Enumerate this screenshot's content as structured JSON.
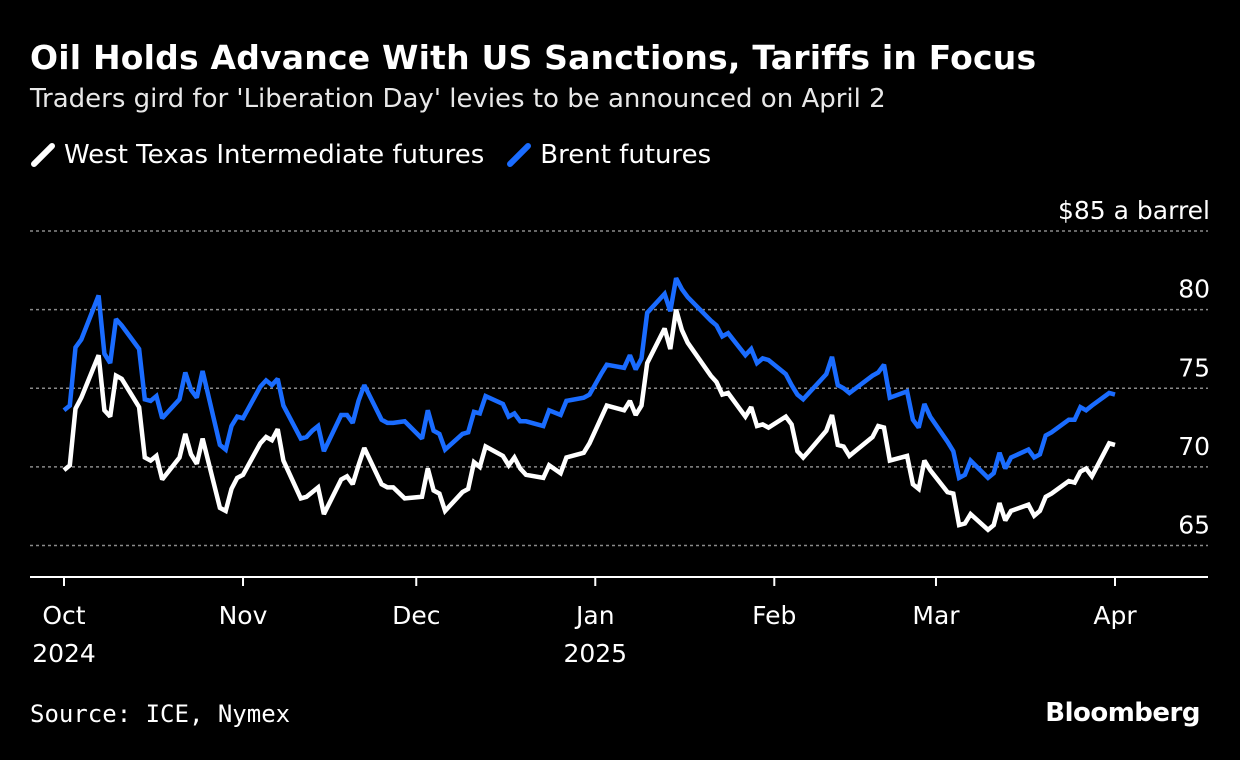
{
  "header": {
    "title": "Oil Holds Advance With US Sanctions, Tariffs in Focus",
    "subtitle": "Traders gird for 'Liberation Day' levies to be announced on April 2"
  },
  "footer": {
    "source": "Source: ICE, Nymex",
    "brand": "Bloomberg"
  },
  "colors": {
    "background": "#000000",
    "wti": "#ffffff",
    "brent": "#1a6cff",
    "grid": "#8a8a8a"
  },
  "chart_data": {
    "type": "line",
    "title": "Oil Holds Advance With US Sanctions, Tariffs in Focus",
    "subtitle": "Traders gird for 'Liberation Day' levies to be announced on April 2",
    "ylabel": "",
    "y_unit_label": "$85 a barrel",
    "ylim": [
      63,
      85
    ],
    "yticks": [
      65,
      70,
      75,
      80,
      85
    ],
    "ytick_labels": [
      "65",
      "70",
      "75",
      "80",
      "$85 a barrel"
    ],
    "grid": "horizontal dotted",
    "legend": "top-left",
    "xlim": [
      "2024-10-01",
      "2025-04-01"
    ],
    "xticks": [
      {
        "date": "2024-10-01",
        "label": "Oct",
        "sublabel": "2024"
      },
      {
        "date": "2024-11-01",
        "label": "Nov",
        "sublabel": ""
      },
      {
        "date": "2024-12-01",
        "label": "Dec",
        "sublabel": ""
      },
      {
        "date": "2025-01-01",
        "label": "Jan",
        "sublabel": "2025"
      },
      {
        "date": "2025-02-01",
        "label": "Feb",
        "sublabel": ""
      },
      {
        "date": "2025-03-01",
        "label": "Mar",
        "sublabel": ""
      },
      {
        "date": "2025-04-01",
        "label": "Apr",
        "sublabel": ""
      }
    ],
    "series": [
      {
        "name": "West Texas Intermediate futures",
        "color": "#ffffff",
        "points": [
          [
            "2024-10-01",
            69.8
          ],
          [
            "2024-10-02",
            70.1
          ],
          [
            "2024-10-03",
            73.7
          ],
          [
            "2024-10-04",
            74.4
          ],
          [
            "2024-10-07",
            77.1
          ],
          [
            "2024-10-08",
            73.6
          ],
          [
            "2024-10-09",
            73.2
          ],
          [
            "2024-10-10",
            75.8
          ],
          [
            "2024-10-11",
            75.6
          ],
          [
            "2024-10-14",
            73.8
          ],
          [
            "2024-10-15",
            70.6
          ],
          [
            "2024-10-16",
            70.4
          ],
          [
            "2024-10-17",
            70.7
          ],
          [
            "2024-10-18",
            69.2
          ],
          [
            "2024-10-21",
            70.6
          ],
          [
            "2024-10-22",
            72.1
          ],
          [
            "2024-10-23",
            70.8
          ],
          [
            "2024-10-24",
            70.2
          ],
          [
            "2024-10-25",
            71.8
          ],
          [
            "2024-10-28",
            67.4
          ],
          [
            "2024-10-29",
            67.2
          ],
          [
            "2024-10-30",
            68.6
          ],
          [
            "2024-10-31",
            69.3
          ],
          [
            "2024-11-01",
            69.5
          ],
          [
            "2024-11-04",
            71.5
          ],
          [
            "2024-11-05",
            71.9
          ],
          [
            "2024-11-06",
            71.7
          ],
          [
            "2024-11-07",
            72.4
          ],
          [
            "2024-11-08",
            70.4
          ],
          [
            "2024-11-11",
            68.0
          ],
          [
            "2024-11-12",
            68.1
          ],
          [
            "2024-11-13",
            68.4
          ],
          [
            "2024-11-14",
            68.7
          ],
          [
            "2024-11-15",
            67.0
          ],
          [
            "2024-11-18",
            69.2
          ],
          [
            "2024-11-19",
            69.4
          ],
          [
            "2024-11-20",
            68.9
          ],
          [
            "2024-11-21",
            70.1
          ],
          [
            "2024-11-22",
            71.2
          ],
          [
            "2024-11-25",
            68.9
          ],
          [
            "2024-11-26",
            68.7
          ],
          [
            "2024-11-27",
            68.7
          ],
          [
            "2024-11-29",
            68.0
          ],
          [
            "2024-12-02",
            68.1
          ],
          [
            "2024-12-03",
            69.9
          ],
          [
            "2024-12-04",
            68.5
          ],
          [
            "2024-12-05",
            68.3
          ],
          [
            "2024-12-06",
            67.2
          ],
          [
            "2024-12-09",
            68.4
          ],
          [
            "2024-12-10",
            68.6
          ],
          [
            "2024-12-11",
            70.3
          ],
          [
            "2024-12-12",
            70.0
          ],
          [
            "2024-12-13",
            71.3
          ],
          [
            "2024-12-16",
            70.7
          ],
          [
            "2024-12-17",
            70.1
          ],
          [
            "2024-12-18",
            70.6
          ],
          [
            "2024-12-19",
            69.9
          ],
          [
            "2024-12-20",
            69.5
          ],
          [
            "2024-12-23",
            69.3
          ],
          [
            "2024-12-24",
            70.1
          ],
          [
            "2024-12-26",
            69.6
          ],
          [
            "2024-12-27",
            70.6
          ],
          [
            "2024-12-30",
            70.9
          ],
          [
            "2024-12-31",
            71.5
          ],
          [
            "2025-01-02",
            73.1
          ],
          [
            "2025-01-03",
            73.9
          ],
          [
            "2025-01-06",
            73.6
          ],
          [
            "2025-01-07",
            74.2
          ],
          [
            "2025-01-08",
            73.3
          ],
          [
            "2025-01-09",
            73.9
          ],
          [
            "2025-01-10",
            76.6
          ],
          [
            "2025-01-13",
            78.8
          ],
          [
            "2025-01-14",
            77.5
          ],
          [
            "2025-01-15",
            80.0
          ],
          [
            "2025-01-16",
            78.7
          ],
          [
            "2025-01-17",
            77.9
          ],
          [
            "2025-01-21",
            75.8
          ],
          [
            "2025-01-22",
            75.4
          ],
          [
            "2025-01-23",
            74.6
          ],
          [
            "2025-01-24",
            74.7
          ],
          [
            "2025-01-27",
            73.2
          ],
          [
            "2025-01-28",
            73.8
          ],
          [
            "2025-01-29",
            72.6
          ],
          [
            "2025-01-30",
            72.7
          ],
          [
            "2025-01-31",
            72.5
          ],
          [
            "2025-02-03",
            73.2
          ],
          [
            "2025-02-04",
            72.7
          ],
          [
            "2025-02-05",
            71.0
          ],
          [
            "2025-02-06",
            70.6
          ],
          [
            "2025-02-07",
            71.0
          ],
          [
            "2025-02-10",
            72.3
          ],
          [
            "2025-02-11",
            73.3
          ],
          [
            "2025-02-12",
            71.4
          ],
          [
            "2025-02-13",
            71.3
          ],
          [
            "2025-02-14",
            70.7
          ],
          [
            "2025-02-18",
            71.9
          ],
          [
            "2025-02-19",
            72.6
          ],
          [
            "2025-02-20",
            72.5
          ],
          [
            "2025-02-21",
            70.4
          ],
          [
            "2025-02-24",
            70.7
          ],
          [
            "2025-02-25",
            68.9
          ],
          [
            "2025-02-26",
            68.6
          ],
          [
            "2025-02-27",
            70.4
          ],
          [
            "2025-02-28",
            69.8
          ],
          [
            "2025-03-03",
            68.4
          ],
          [
            "2025-03-04",
            68.3
          ],
          [
            "2025-03-05",
            66.3
          ],
          [
            "2025-03-06",
            66.4
          ],
          [
            "2025-03-07",
            67.0
          ],
          [
            "2025-03-10",
            66.0
          ],
          [
            "2025-03-11",
            66.3
          ],
          [
            "2025-03-12",
            67.7
          ],
          [
            "2025-03-13",
            66.6
          ],
          [
            "2025-03-14",
            67.2
          ],
          [
            "2025-03-17",
            67.6
          ],
          [
            "2025-03-18",
            66.9
          ],
          [
            "2025-03-19",
            67.2
          ],
          [
            "2025-03-20",
            68.1
          ],
          [
            "2025-03-21",
            68.3
          ],
          [
            "2025-03-24",
            69.1
          ],
          [
            "2025-03-25",
            69.0
          ],
          [
            "2025-03-26",
            69.7
          ],
          [
            "2025-03-27",
            69.9
          ],
          [
            "2025-03-28",
            69.4
          ],
          [
            "2025-03-31",
            71.5
          ],
          [
            "2025-04-01",
            71.4
          ]
        ]
      },
      {
        "name": "Brent futures",
        "color": "#1a6cff",
        "points": [
          [
            "2024-10-01",
            73.6
          ],
          [
            "2024-10-02",
            73.9
          ],
          [
            "2024-10-03",
            77.6
          ],
          [
            "2024-10-04",
            78.1
          ],
          [
            "2024-10-07",
            80.9
          ],
          [
            "2024-10-08",
            77.2
          ],
          [
            "2024-10-09",
            76.6
          ],
          [
            "2024-10-10",
            79.4
          ],
          [
            "2024-10-11",
            79.0
          ],
          [
            "2024-10-14",
            77.5
          ],
          [
            "2024-10-15",
            74.3
          ],
          [
            "2024-10-16",
            74.2
          ],
          [
            "2024-10-17",
            74.5
          ],
          [
            "2024-10-18",
            73.1
          ],
          [
            "2024-10-21",
            74.3
          ],
          [
            "2024-10-22",
            76.0
          ],
          [
            "2024-10-23",
            74.9
          ],
          [
            "2024-10-24",
            74.4
          ],
          [
            "2024-10-25",
            76.1
          ],
          [
            "2024-10-28",
            71.4
          ],
          [
            "2024-10-29",
            71.1
          ],
          [
            "2024-10-30",
            72.6
          ],
          [
            "2024-10-31",
            73.2
          ],
          [
            "2024-11-01",
            73.1
          ],
          [
            "2024-11-04",
            75.1
          ],
          [
            "2024-11-05",
            75.5
          ],
          [
            "2024-11-06",
            75.2
          ],
          [
            "2024-11-07",
            75.6
          ],
          [
            "2024-11-08",
            73.9
          ],
          [
            "2024-11-11",
            71.8
          ],
          [
            "2024-11-12",
            71.9
          ],
          [
            "2024-11-13",
            72.3
          ],
          [
            "2024-11-14",
            72.6
          ],
          [
            "2024-11-15",
            71.0
          ],
          [
            "2024-11-18",
            73.3
          ],
          [
            "2024-11-19",
            73.3
          ],
          [
            "2024-11-20",
            72.8
          ],
          [
            "2024-11-21",
            74.2
          ],
          [
            "2024-11-22",
            75.2
          ],
          [
            "2024-11-25",
            73.0
          ],
          [
            "2024-11-26",
            72.8
          ],
          [
            "2024-11-27",
            72.8
          ],
          [
            "2024-11-29",
            72.9
          ],
          [
            "2024-12-02",
            71.8
          ],
          [
            "2024-12-03",
            73.6
          ],
          [
            "2024-12-04",
            72.3
          ],
          [
            "2024-12-05",
            72.1
          ],
          [
            "2024-12-06",
            71.1
          ],
          [
            "2024-12-09",
            72.1
          ],
          [
            "2024-12-10",
            72.2
          ],
          [
            "2024-12-11",
            73.5
          ],
          [
            "2024-12-12",
            73.4
          ],
          [
            "2024-12-13",
            74.5
          ],
          [
            "2024-12-16",
            74.0
          ],
          [
            "2024-12-17",
            73.2
          ],
          [
            "2024-12-18",
            73.4
          ],
          [
            "2024-12-19",
            72.9
          ],
          [
            "2024-12-20",
            72.9
          ],
          [
            "2024-12-23",
            72.6
          ],
          [
            "2024-12-24",
            73.6
          ],
          [
            "2024-12-26",
            73.3
          ],
          [
            "2024-12-27",
            74.2
          ],
          [
            "2024-12-30",
            74.4
          ],
          [
            "2024-12-31",
            74.6
          ],
          [
            "2025-01-02",
            75.9
          ],
          [
            "2025-01-03",
            76.5
          ],
          [
            "2025-01-06",
            76.3
          ],
          [
            "2025-01-07",
            77.1
          ],
          [
            "2025-01-08",
            76.2
          ],
          [
            "2025-01-09",
            76.9
          ],
          [
            "2025-01-10",
            79.8
          ],
          [
            "2025-01-13",
            81.0
          ],
          [
            "2025-01-14",
            79.9
          ],
          [
            "2025-01-15",
            82.0
          ],
          [
            "2025-01-16",
            81.3
          ],
          [
            "2025-01-17",
            80.8
          ],
          [
            "2025-01-21",
            79.3
          ],
          [
            "2025-01-22",
            79.0
          ],
          [
            "2025-01-23",
            78.3
          ],
          [
            "2025-01-24",
            78.5
          ],
          [
            "2025-01-27",
            77.1
          ],
          [
            "2025-01-28",
            77.5
          ],
          [
            "2025-01-29",
            76.6
          ],
          [
            "2025-01-30",
            76.9
          ],
          [
            "2025-01-31",
            76.8
          ],
          [
            "2025-02-03",
            75.9
          ],
          [
            "2025-02-04",
            75.2
          ],
          [
            "2025-02-05",
            74.6
          ],
          [
            "2025-02-06",
            74.3
          ],
          [
            "2025-02-07",
            74.7
          ],
          [
            "2025-02-10",
            75.9
          ],
          [
            "2025-02-11",
            77.0
          ],
          [
            "2025-02-12",
            75.2
          ],
          [
            "2025-02-13",
            75.0
          ],
          [
            "2025-02-14",
            74.7
          ],
          [
            "2025-02-18",
            75.8
          ],
          [
            "2025-02-19",
            76.0
          ],
          [
            "2025-02-20",
            76.5
          ],
          [
            "2025-02-21",
            74.4
          ],
          [
            "2025-02-24",
            74.8
          ],
          [
            "2025-02-25",
            73.0
          ],
          [
            "2025-02-26",
            72.5
          ],
          [
            "2025-02-27",
            74.0
          ],
          [
            "2025-02-28",
            73.2
          ],
          [
            "2025-03-03",
            71.6
          ],
          [
            "2025-03-04",
            71.0
          ],
          [
            "2025-03-05",
            69.3
          ],
          [
            "2025-03-06",
            69.5
          ],
          [
            "2025-03-07",
            70.4
          ],
          [
            "2025-03-10",
            69.3
          ],
          [
            "2025-03-11",
            69.6
          ],
          [
            "2025-03-12",
            70.9
          ],
          [
            "2025-03-13",
            69.9
          ],
          [
            "2025-03-14",
            70.6
          ],
          [
            "2025-03-17",
            71.1
          ],
          [
            "2025-03-18",
            70.6
          ],
          [
            "2025-03-19",
            70.8
          ],
          [
            "2025-03-20",
            72.0
          ],
          [
            "2025-03-21",
            72.2
          ],
          [
            "2025-03-24",
            73.0
          ],
          [
            "2025-03-25",
            73.0
          ],
          [
            "2025-03-26",
            73.8
          ],
          [
            "2025-03-27",
            73.6
          ],
          [
            "2025-03-28",
            73.9
          ],
          [
            "2025-03-31",
            74.7
          ],
          [
            "2025-04-01",
            74.6
          ]
        ]
      }
    ]
  }
}
